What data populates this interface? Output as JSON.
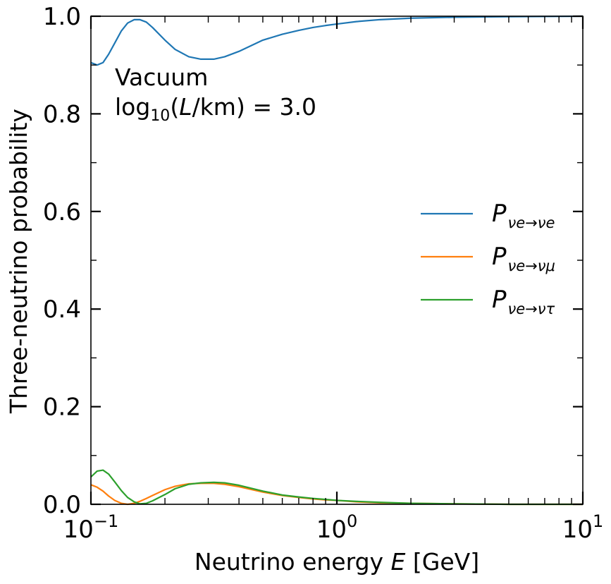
{
  "chart_data": {
    "type": "line",
    "xscale": "log",
    "xlim": [
      0.1,
      10
    ],
    "ylim": [
      0.0,
      1.0
    ],
    "xlabel": {
      "prefix": "Neutrino energy ",
      "var": "E",
      "suffix": " [GeV]"
    },
    "ylabel": "Three-neutrino probability",
    "annotations": {
      "line1": "Vacuum",
      "line2_prefix": "log",
      "line2_sub": "10",
      "line2_paren_open": "(",
      "line2_var": "L",
      "line2_rest": "/km) = 3.0"
    },
    "x_ticks": [
      {
        "value": 0.1,
        "base": "10",
        "exp": "−1"
      },
      {
        "value": 1,
        "base": "10",
        "exp": "0"
      },
      {
        "value": 10,
        "base": "10",
        "exp": "1"
      }
    ],
    "y_ticks": [
      {
        "value": 0.0,
        "label": "0.0"
      },
      {
        "value": 0.2,
        "label": "0.2"
      },
      {
        "value": 0.4,
        "label": "0.4"
      },
      {
        "value": 0.6,
        "label": "0.6"
      },
      {
        "value": 0.8,
        "label": "0.8"
      },
      {
        "value": 1.0,
        "label": "1.0"
      }
    ],
    "legend_position": "center-right",
    "series": [
      {
        "name": "P_{νe→νe}",
        "legend_sub": "νe→νe",
        "color": "#1f77b4",
        "x": [
          0.1,
          0.106,
          0.112,
          0.118,
          0.125,
          0.133,
          0.141,
          0.15,
          0.158,
          0.168,
          0.178,
          0.2,
          0.22,
          0.25,
          0.28,
          0.316,
          0.35,
          0.4,
          0.5,
          0.6,
          0.7,
          0.8,
          0.9,
          1.0,
          1.2,
          1.5,
          2.0,
          3.0,
          5.0,
          10.0
        ],
        "y": [
          0.905,
          0.9,
          0.905,
          0.922,
          0.945,
          0.97,
          0.986,
          0.993,
          0.993,
          0.988,
          0.977,
          0.951,
          0.932,
          0.917,
          0.912,
          0.912,
          0.917,
          0.928,
          0.951,
          0.963,
          0.971,
          0.977,
          0.981,
          0.984,
          0.989,
          0.993,
          0.996,
          0.998,
          0.999,
          1.0
        ]
      },
      {
        "name": "P_{νe→νμ}",
        "legend_sub": "νe→νμ",
        "color": "#ff7f0e",
        "x": [
          0.1,
          0.106,
          0.112,
          0.118,
          0.125,
          0.133,
          0.141,
          0.15,
          0.158,
          0.168,
          0.178,
          0.2,
          0.22,
          0.25,
          0.28,
          0.316,
          0.35,
          0.4,
          0.5,
          0.6,
          0.7,
          0.8,
          0.9,
          1.0,
          1.2,
          1.5,
          2.0,
          3.0,
          5.0,
          10.0
        ],
        "y": [
          0.04,
          0.035,
          0.027,
          0.017,
          0.008,
          0.002,
          0.0,
          0.002,
          0.006,
          0.012,
          0.018,
          0.03,
          0.037,
          0.042,
          0.043,
          0.043,
          0.041,
          0.036,
          0.025,
          0.018,
          0.014,
          0.011,
          0.009,
          0.008,
          0.005,
          0.003,
          0.002,
          0.001,
          0.0,
          0.0
        ]
      },
      {
        "name": "P_{νe→ντ}",
        "legend_sub": "νe→ντ",
        "color": "#2ca02c",
        "x": [
          0.1,
          0.106,
          0.112,
          0.118,
          0.125,
          0.133,
          0.141,
          0.15,
          0.158,
          0.168,
          0.178,
          0.2,
          0.22,
          0.25,
          0.28,
          0.316,
          0.35,
          0.4,
          0.5,
          0.6,
          0.7,
          0.8,
          0.9,
          1.0,
          1.2,
          1.5,
          2.0,
          3.0,
          5.0,
          10.0
        ],
        "y": [
          0.056,
          0.068,
          0.07,
          0.062,
          0.046,
          0.028,
          0.014,
          0.005,
          0.001,
          0.002,
          0.007,
          0.02,
          0.032,
          0.041,
          0.044,
          0.045,
          0.044,
          0.039,
          0.027,
          0.019,
          0.015,
          0.012,
          0.01,
          0.008,
          0.006,
          0.004,
          0.002,
          0.001,
          0.0,
          0.0
        ]
      }
    ]
  }
}
